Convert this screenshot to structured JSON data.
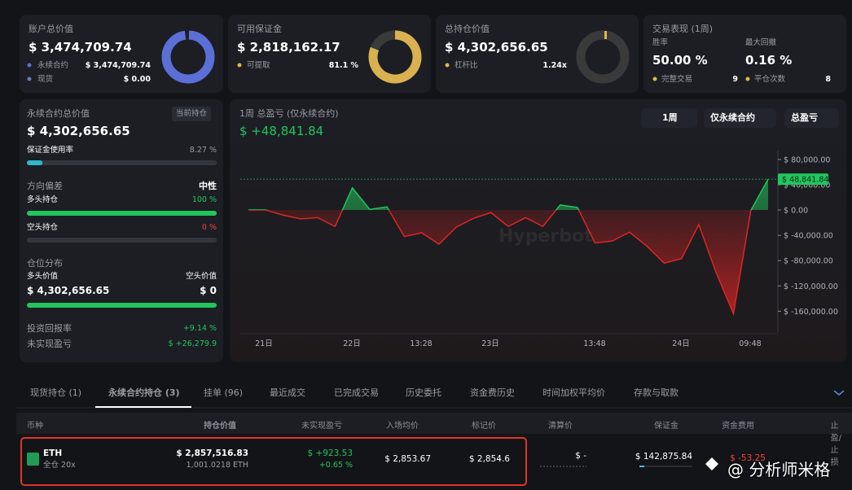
{
  "cards": [
    {
      "title": "账户总价值",
      "value": "$ 3,474,709.74",
      "rows": [
        {
          "label": "永续合约",
          "value": "$ 3,474,709.74"
        },
        {
          "label": "现货",
          "value": "$ 0.00"
        }
      ]
    },
    {
      "title": "可用保证金",
      "value": "$ 2,818,162.17",
      "rows": [
        {
          "label": "可提取",
          "value": {
            "value": 81.1,
            "label": "81.1 %"
          }
        }
      ]
    },
    {
      "title": "总持仓价值",
      "value": "$ 4,302,656.65",
      "rows": [
        {
          "label": "杠杆比",
          "value": "1.24x"
        }
      ]
    },
    {
      "title": "交易表现 (1周)",
      "win_rate_label": "胜率",
      "win_rate": "50.00 %",
      "drawdown_label": "最大回撤",
      "drawdown": "0.16 %",
      "rows": [
        {
          "label": "完整交易",
          "value": "9"
        },
        {
          "label": "平仓次数",
          "value": "8"
        }
      ]
    }
  ],
  "left_panel": {
    "title": "永续合约总价值",
    "badge": "当前持仓",
    "value": "$ 4,302,656.65",
    "margin_usage_label": "保证金使用率",
    "margin_usage": {
      "value": 8.27,
      "label": "8.27 %"
    },
    "bias_label": "方向偏差",
    "bias": "中性",
    "long_label": "多头持仓",
    "long": {
      "value": 100,
      "label": "100 %"
    },
    "short_label": "空头持仓",
    "short": {
      "value": 0,
      "label": "0 %"
    },
    "distribution_label": "仓位分布",
    "long_value_label": "多头价值",
    "short_value_label": "空头价值",
    "long_value": "$ 4,302,656.65",
    "short_value": "$ 0",
    "roi_label": "投资回报率",
    "roi": "+9.14 %",
    "upnl_label": "未实现盈亏",
    "upnl": "$ +26,279.9"
  },
  "pnl_chart": {
    "type": "line",
    "title": "1周 总盈亏 (仅永续合约)",
    "value": "$ +48,841.84",
    "controls": [
      "1周",
      "仅永续合约",
      "总盈亏"
    ],
    "watermark": "Hyperbot",
    "x_labels": [
      "21日",
      "22日",
      "13:28",
      "23日",
      "13:48",
      "24日",
      "09:48"
    ],
    "values": [
      0,
      0,
      -8000,
      -14000,
      -12000,
      -26000,
      35000,
      1000,
      5000,
      -42000,
      -36000,
      -54000,
      -27000,
      -13000,
      -4000,
      -26000,
      -12000,
      -26000,
      8000,
      4000,
      -52000,
      -49000,
      -35000,
      -57000,
      -84000,
      -77000,
      -23000,
      -99000,
      -164000,
      -1000,
      48841.84
    ],
    "ylim": [
      -193000,
      94000
    ],
    "yticks": [
      {
        "value": 80000,
        "label": "$ 80,000.00"
      },
      {
        "value": 40000,
        "label": "$ 40,000.00"
      },
      {
        "value": 0,
        "label": "$ 0.00"
      },
      {
        "value": -40000,
        "label": "$ -40,000.00"
      },
      {
        "value": -80000,
        "label": "$ -80,000.00"
      },
      {
        "value": -120000,
        "label": "$ -120,000.00"
      },
      {
        "value": -160000,
        "label": "$ -160,000.00"
      }
    ],
    "current": {
      "value": 48841.84,
      "label": "$ 48,841.84"
    }
  },
  "tabs": [
    "现货持仓 (1)",
    "永续合约持仓 (3)",
    "挂单 (96)",
    "最近成交",
    "已完成交易",
    "历史委托",
    "资金费历史",
    "时间加权平均价",
    "存款与取款"
  ],
  "table": {
    "headers": [
      "币种",
      "持仓价值",
      "未实现盈亏",
      "入场均价",
      "标记价",
      "清算价",
      "保证金",
      "资金费用",
      "止盈/止损"
    ],
    "rows": [
      {
        "coin": "ETH",
        "mode": "全仓 20x",
        "value": "$ 2,857,516.83",
        "size": "1,001.0218 ETH",
        "upnl": "$ +923.53",
        "upnl_pct": "+0.65 %",
        "entry": "$ 2,853.67",
        "mark": "$ 2,854.6",
        "liq": "$ -",
        "margin": "$ 142,875.84",
        "funding": "$ -53.25"
      }
    ]
  },
  "watermark": "@ 分析师米格"
}
